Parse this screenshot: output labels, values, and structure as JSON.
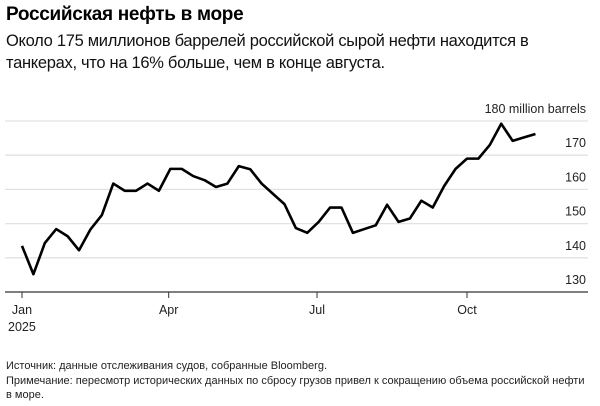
{
  "title": "Российская нефть в море",
  "subtitle": "Около 175 миллионов баррелей российской сырой нефти находится в танкерах, что на 16% больше, чем в конце августа.",
  "footer": {
    "source": "Источник: данные отслеживания судов, собранные Bloomberg.",
    "note": "Примечание: пересмотр исторических данных по сбросу грузов привел к сокращению объема российской нефти в море."
  },
  "chart_data": {
    "type": "line",
    "unit_label": "180 million barrels",
    "ylim": [
      130,
      180
    ],
    "yticks": [
      130,
      140,
      150,
      160,
      170,
      180
    ],
    "xlim": [
      "2025-01-01",
      "2025-12-01"
    ],
    "xticks": [
      {
        "date": "2025-01-01",
        "label": "Jan",
        "sublabel": "2025"
      },
      {
        "date": "2025-04-01",
        "label": "Apr"
      },
      {
        "date": "2025-07-01",
        "label": "Jul"
      },
      {
        "date": "2025-10-01",
        "label": "Oct"
      }
    ],
    "grid": true,
    "line_color": "#000000",
    "x_start": "2025-01-01",
    "x_step_days": 7,
    "values": [
      143.5,
      135.2,
      144.3,
      148.4,
      146.3,
      142.2,
      148.3,
      152.5,
      161.7,
      159.6,
      159.6,
      161.7,
      159.6,
      166,
      166,
      163.9,
      162.7,
      160.7,
      161.7,
      166.8,
      165.9,
      161.7,
      158.7,
      155.7,
      148.7,
      147.3,
      150.5,
      154.7,
      154.7,
      147.3,
      148.4,
      149.5,
      155.5,
      150.5,
      151.5,
      156.7,
      154.7,
      161,
      166,
      169,
      169,
      173,
      179.2,
      174.2,
      175.2,
      176.2
    ]
  }
}
